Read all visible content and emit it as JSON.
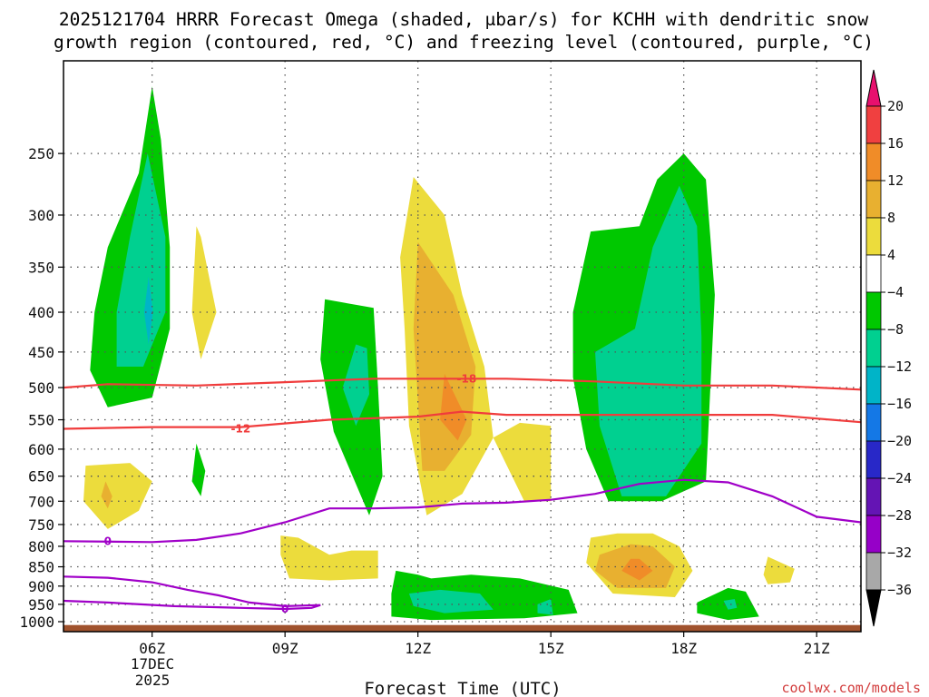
{
  "chart_data": {
    "type": "contour",
    "title_line1": "2025121704 HRRR Forecast Omega (shaded, μbar/s) for KCHH with dendritic snow",
    "title_line2": "growth region (contoured, red, °C) and freezing level (contoured, purple, °C)",
    "xlabel": "Forecast Time (UTC)",
    "ylabel": "",
    "credit": "coolwx.com/models",
    "xaxis": {
      "ticks": [
        {
          "hour": 6,
          "label": "06Z"
        },
        {
          "hour": 9,
          "label": "09Z"
        },
        {
          "hour": 12,
          "label": "12Z"
        },
        {
          "hour": 15,
          "label": "15Z"
        },
        {
          "hour": 18,
          "label": "18Z"
        },
        {
          "hour": 21,
          "label": "21Z"
        }
      ],
      "date_line1": "17DEC",
      "date_line2": "2025",
      "range_hours": [
        4,
        22
      ]
    },
    "yaxis": {
      "type": "pressure_log",
      "unit": "hPa",
      "range": [
        190,
        1030
      ],
      "ticks": [
        250,
        300,
        350,
        400,
        450,
        500,
        550,
        600,
        650,
        700,
        750,
        800,
        850,
        900,
        950,
        1000
      ]
    },
    "colorbar": {
      "levels": [
        20,
        16,
        12,
        8,
        4,
        -4,
        -8,
        -12,
        -16,
        -20,
        -24,
        -28,
        -32,
        -36
      ],
      "colors": [
        "#e8106e",
        "#f04040",
        "#f08c28",
        "#e8b030",
        "#ecdc3c",
        "#ffffff",
        "#00c800",
        "#00d090",
        "#00b4c8",
        "#1478e6",
        "#2828c8",
        "#6414b4",
        "#9600c8",
        "#a8a8a8",
        "#000000"
      ]
    },
    "shaded_regions": [
      {
        "category": "-8_to_-4",
        "color": "#00c800",
        "points": [
          [
            6,
            205
          ],
          [
            5.7,
            265
          ],
          [
            5.0,
            330
          ],
          [
            4.7,
            400
          ],
          [
            4.6,
            475
          ],
          [
            5.0,
            530
          ],
          [
            6.0,
            515
          ],
          [
            6.4,
            420
          ],
          [
            6.4,
            330
          ],
          [
            6.2,
            240
          ]
        ]
      },
      {
        "category": "-12_to_-8",
        "color": "#00d090",
        "points": [
          [
            5.9,
            250
          ],
          [
            5.5,
            320
          ],
          [
            5.2,
            400
          ],
          [
            5.2,
            470
          ],
          [
            5.8,
            470
          ],
          [
            6.3,
            400
          ],
          [
            6.3,
            320
          ]
        ]
      },
      {
        "category": "-16_to_-12",
        "color": "#00b4c8",
        "points": [
          [
            5.92,
            360
          ],
          [
            5.82,
            400
          ],
          [
            5.92,
            440
          ],
          [
            6.02,
            400
          ]
        ]
      },
      {
        "category": "4_to_8",
        "color": "#ecdc3c",
        "points": [
          [
            7.0,
            310
          ],
          [
            6.9,
            400
          ],
          [
            7.1,
            460
          ],
          [
            7.45,
            400
          ],
          [
            7.1,
            320
          ]
        ]
      },
      {
        "category": "-8_to_-4",
        "color": "#00c800",
        "points": [
          [
            7.0,
            590
          ],
          [
            6.9,
            660
          ],
          [
            7.1,
            690
          ],
          [
            7.2,
            640
          ]
        ]
      },
      {
        "category": "4_to_8",
        "color": "#ecdc3c",
        "points": [
          [
            4.5,
            630
          ],
          [
            4.45,
            700
          ],
          [
            5.0,
            760
          ],
          [
            5.7,
            720
          ],
          [
            6.0,
            660
          ],
          [
            5.5,
            625
          ]
        ]
      },
      {
        "category": "8_to_12",
        "color": "#e8b030",
        "points": [
          [
            4.95,
            660
          ],
          [
            4.85,
            690
          ],
          [
            5.0,
            715
          ],
          [
            5.1,
            690
          ]
        ]
      },
      {
        "category": "-8_to_-4",
        "color": "#00c800",
        "points": [
          [
            9.9,
            385
          ],
          [
            9.8,
            460
          ],
          [
            10.1,
            570
          ],
          [
            10.9,
            730
          ],
          [
            11.2,
            650
          ],
          [
            11.1,
            500
          ],
          [
            11.0,
            395
          ]
        ]
      },
      {
        "category": "-12_to_-8",
        "color": "#00d090",
        "points": [
          [
            10.6,
            440
          ],
          [
            10.3,
            500
          ],
          [
            10.6,
            560
          ],
          [
            10.9,
            510
          ],
          [
            10.85,
            445
          ]
        ]
      },
      {
        "category": "4_to_8",
        "color": "#ecdc3c",
        "points": [
          [
            11.9,
            268
          ],
          [
            11.6,
            340
          ],
          [
            11.7,
            420
          ],
          [
            11.8,
            560
          ],
          [
            12.2,
            730
          ],
          [
            13.0,
            685
          ],
          [
            13.7,
            580
          ],
          [
            14.3,
            555
          ],
          [
            15.0,
            560
          ],
          [
            15.0,
            700
          ],
          [
            14.4,
            700
          ],
          [
            13.7,
            580
          ],
          [
            13.5,
            470
          ],
          [
            13.0,
            380
          ],
          [
            12.6,
            300
          ]
        ]
      },
      {
        "category": "8_to_12",
        "color": "#e8b030",
        "points": [
          [
            12.0,
            325
          ],
          [
            11.9,
            420
          ],
          [
            12.0,
            520
          ],
          [
            12.1,
            640
          ],
          [
            12.6,
            640
          ],
          [
            13.2,
            575
          ],
          [
            13.3,
            470
          ],
          [
            12.8,
            380
          ]
        ]
      },
      {
        "category": "12_to_16",
        "color": "#f08c28",
        "points": [
          [
            12.6,
            480
          ],
          [
            12.5,
            550
          ],
          [
            12.9,
            585
          ],
          [
            13.1,
            550
          ]
        ]
      },
      {
        "category": "-8_to_-4",
        "color": "#00c800",
        "points": [
          [
            15.5,
            400
          ],
          [
            15.5,
            485
          ],
          [
            15.8,
            600
          ],
          [
            16.3,
            700
          ],
          [
            17.5,
            700
          ],
          [
            18.5,
            660
          ],
          [
            18.6,
            500
          ],
          [
            18.7,
            380
          ],
          [
            18.5,
            270
          ],
          [
            18.0,
            250
          ],
          [
            17.4,
            270
          ],
          [
            17.0,
            310
          ],
          [
            15.9,
            315
          ],
          [
            15.5,
            400
          ]
        ]
      },
      {
        "category": "-12_to_-8",
        "color": "#00d090",
        "points": [
          [
            16.0,
            450
          ],
          [
            16.1,
            560
          ],
          [
            16.6,
            690
          ],
          [
            17.6,
            690
          ],
          [
            18.4,
            590
          ],
          [
            18.4,
            430
          ],
          [
            18.3,
            310
          ],
          [
            17.9,
            275
          ],
          [
            17.3,
            330
          ],
          [
            16.9,
            420
          ]
        ]
      },
      {
        "category": "4_to_8",
        "color": "#ecdc3c",
        "points": [
          [
            15.9,
            780
          ],
          [
            15.8,
            840
          ],
          [
            16.4,
            920
          ],
          [
            17.8,
            930
          ],
          [
            18.2,
            860
          ],
          [
            17.9,
            800
          ],
          [
            17.3,
            770
          ],
          [
            16.5,
            770
          ]
        ]
      },
      {
        "category": "8_to_12",
        "color": "#e8b030",
        "points": [
          [
            16.1,
            820
          ],
          [
            16.0,
            860
          ],
          [
            16.5,
            905
          ],
          [
            17.6,
            905
          ],
          [
            17.8,
            850
          ],
          [
            17.3,
            800
          ],
          [
            16.8,
            795
          ]
        ]
      },
      {
        "category": "12_to_16",
        "color": "#f08c28",
        "points": [
          [
            16.8,
            830
          ],
          [
            16.6,
            860
          ],
          [
            17.0,
            885
          ],
          [
            17.3,
            860
          ],
          [
            17.0,
            830
          ]
        ]
      },
      {
        "category": "4_to_8",
        "color": "#ecdc3c",
        "points": [
          [
            8.9,
            775
          ],
          [
            8.9,
            820
          ],
          [
            9.1,
            880
          ],
          [
            10.0,
            885
          ],
          [
            11.1,
            880
          ],
          [
            11.1,
            810
          ],
          [
            10.5,
            810
          ],
          [
            10.0,
            820
          ],
          [
            9.3,
            780
          ]
        ]
      },
      {
        "category": "-8_to_-4",
        "color": "#00c800",
        "points": [
          [
            11.5,
            860
          ],
          [
            11.4,
            920
          ],
          [
            11.4,
            985
          ],
          [
            12.3,
            995
          ],
          [
            14.4,
            990
          ],
          [
            15.6,
            975
          ],
          [
            15.4,
            910
          ],
          [
            14.3,
            880
          ],
          [
            13.2,
            870
          ],
          [
            12.3,
            880
          ],
          [
            12.0,
            870
          ]
        ]
      },
      {
        "category": "-12_to_-8",
        "color": "#00d090",
        "points": [
          [
            11.8,
            920
          ],
          [
            11.9,
            955
          ],
          [
            12.6,
            975
          ],
          [
            13.7,
            965
          ],
          [
            13.4,
            920
          ],
          [
            12.5,
            910
          ]
        ]
      },
      {
        "category": "-12_to_-8",
        "color": "#00d090",
        "points": [
          [
            14.7,
            950
          ],
          [
            14.7,
            975
          ],
          [
            15.05,
            980
          ],
          [
            15.0,
            935
          ]
        ]
      },
      {
        "category": "4_to_8",
        "color": "#ecdc3c",
        "points": [
          [
            19.8,
            870
          ],
          [
            19.9,
            895
          ],
          [
            20.4,
            890
          ],
          [
            20.5,
            855
          ],
          [
            19.9,
            825
          ]
        ]
      },
      {
        "category": "-8_to_-4",
        "color": "#00c800",
        "points": [
          [
            18.3,
            945
          ],
          [
            18.3,
            975
          ],
          [
            19.0,
            995
          ],
          [
            19.7,
            985
          ],
          [
            19.4,
            915
          ],
          [
            19.0,
            905
          ]
        ]
      },
      {
        "category": "-12_to_-8",
        "color": "#00d090",
        "points": [
          [
            18.9,
            940
          ],
          [
            19.0,
            965
          ],
          [
            19.2,
            960
          ],
          [
            19.15,
            935
          ]
        ]
      }
    ],
    "contours_red": [
      {
        "label": "-18",
        "label_at": [
          13.1,
          487
        ],
        "points": [
          [
            4,
            500
          ],
          [
            5,
            495
          ],
          [
            7,
            497
          ],
          [
            9,
            492
          ],
          [
            11,
            487
          ],
          [
            12,
            487
          ],
          [
            13,
            487
          ],
          [
            14,
            487
          ],
          [
            16,
            491
          ],
          [
            18,
            497
          ],
          [
            20,
            497
          ],
          [
            22,
            503
          ]
        ]
      },
      {
        "label": "-12",
        "label_at": [
          8.0,
          565
        ],
        "points": [
          [
            4,
            565
          ],
          [
            6,
            562
          ],
          [
            8,
            562
          ],
          [
            10,
            550
          ],
          [
            12,
            545
          ],
          [
            13,
            537
          ],
          [
            14,
            542
          ],
          [
            16,
            542
          ],
          [
            18,
            542
          ],
          [
            20,
            542
          ],
          [
            22,
            554
          ]
        ]
      }
    ],
    "contours_purple": [
      {
        "label": "0",
        "label_at": [
          5.0,
          788
        ],
        "points": [
          [
            4,
            788
          ],
          [
            6,
            790
          ],
          [
            7,
            785
          ],
          [
            8,
            770
          ],
          [
            9,
            745
          ],
          [
            10,
            715
          ],
          [
            11,
            715
          ],
          [
            12,
            713
          ],
          [
            13,
            705
          ],
          [
            14,
            703
          ],
          [
            15,
            697
          ],
          [
            16,
            685
          ],
          [
            17,
            665
          ],
          [
            18,
            657
          ],
          [
            19,
            662
          ],
          [
            20,
            690
          ],
          [
            21,
            733
          ],
          [
            22,
            745
          ]
        ]
      },
      {
        "label": "0",
        "label_at": [
          9.0,
          963
        ],
        "points": [
          [
            4,
            875
          ],
          [
            5,
            878
          ],
          [
            6,
            890
          ],
          [
            6.8,
            910
          ],
          [
            7.5,
            925
          ],
          [
            8.2,
            945
          ],
          [
            9,
            955
          ],
          [
            9.8,
            952
          ],
          [
            9.6,
            960
          ],
          [
            9,
            963
          ],
          [
            8,
            960
          ],
          [
            6.5,
            955
          ],
          [
            5,
            945
          ],
          [
            4,
            940
          ]
        ]
      }
    ],
    "ground": {
      "color": "#a0522d",
      "top_hpa": 1010
    }
  }
}
